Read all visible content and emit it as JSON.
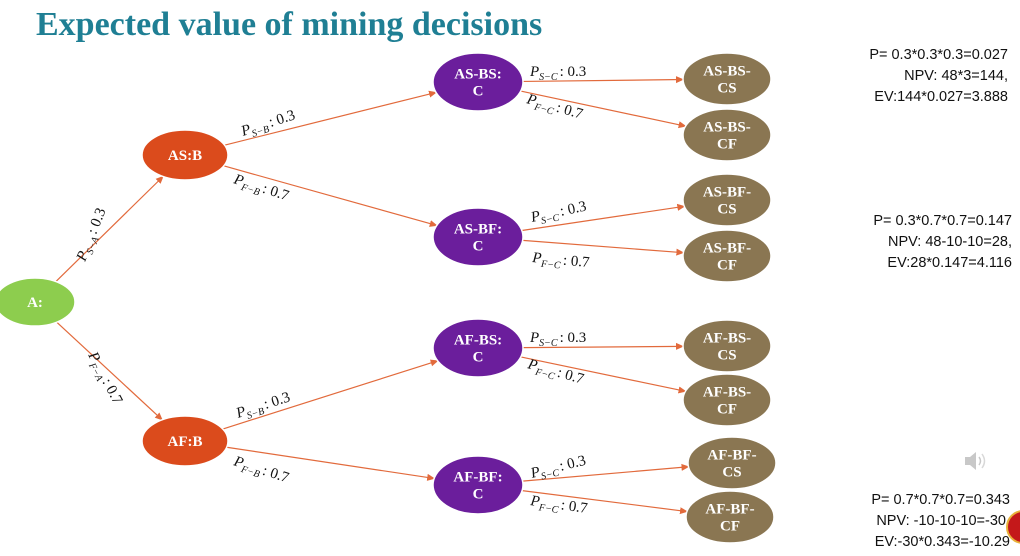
{
  "title": "Expected value of mining decisions",
  "colors": {
    "title": "#1f7f94",
    "root": "#8dcd4e",
    "level1": "#db4b1c",
    "level2": "#6b1e9c",
    "leaf": "#8a7652",
    "edge": "#e26a3c"
  },
  "nodes": {
    "A": [
      "A:"
    ],
    "ASB": [
      "AS:B"
    ],
    "AFB": [
      "AF:B"
    ],
    "ASBSC": [
      "AS-BS:",
      "C"
    ],
    "ASBFC": [
      "AS-BF:",
      "C"
    ],
    "AFBSC": [
      "AF-BS:",
      "C"
    ],
    "AFBFC": [
      "AF-BF:",
      "C"
    ],
    "ASBSCS": [
      "AS-BS-",
      "CS"
    ],
    "ASBSCF": [
      "AS-BS-",
      "CF"
    ],
    "ASBFCS": [
      "AS-BF-",
      "CS"
    ],
    "ASBFCF": [
      "AS-BF-",
      "CF"
    ],
    "AFBSCS": [
      "AF-BS-",
      "CS"
    ],
    "AFBSCF": [
      "AF-BS-",
      "CF"
    ],
    "AFBFCS": [
      "AF-BF-",
      "CS"
    ],
    "AFBFCF": [
      "AF-BF-",
      "CF"
    ]
  },
  "probabilities": {
    "SA": {
      "sym": "P",
      "sub": "S−A",
      "val": ": 0.3"
    },
    "FA": {
      "sym": "P",
      "sub": "F−A",
      "val": ": 0.7"
    },
    "SB": {
      "sym": "P",
      "sub": "S−B",
      "val": ": 0.3"
    },
    "FB": {
      "sym": "P",
      "sub": "F−B",
      "val": ": 0.7"
    },
    "SC": {
      "sym": "P",
      "sub": "S−C",
      "val": ": 0.3"
    },
    "FC": {
      "sym": "P",
      "sub": "F−C",
      "val": ": 0.7"
    }
  },
  "calculations": [
    {
      "p": "P= 0.3*0.3*0.3=0.027",
      "npv": "NPV: 48*3=144,",
      "ev": "EV:144*0.027=3.888"
    },
    {
      "p": "P= 0.3*0.7*0.7=0.147",
      "npv": "NPV: 48-10-10=28,",
      "ev": "EV:28*0.147=4.116"
    },
    {
      "p": "P= 0.7*0.7*0.7=0.343",
      "npv": "NPV: -10-10-10=-30,",
      "ev": "EV:-30*0.343=-10.29"
    }
  ],
  "icons": {
    "audio": "speaker-icon"
  }
}
